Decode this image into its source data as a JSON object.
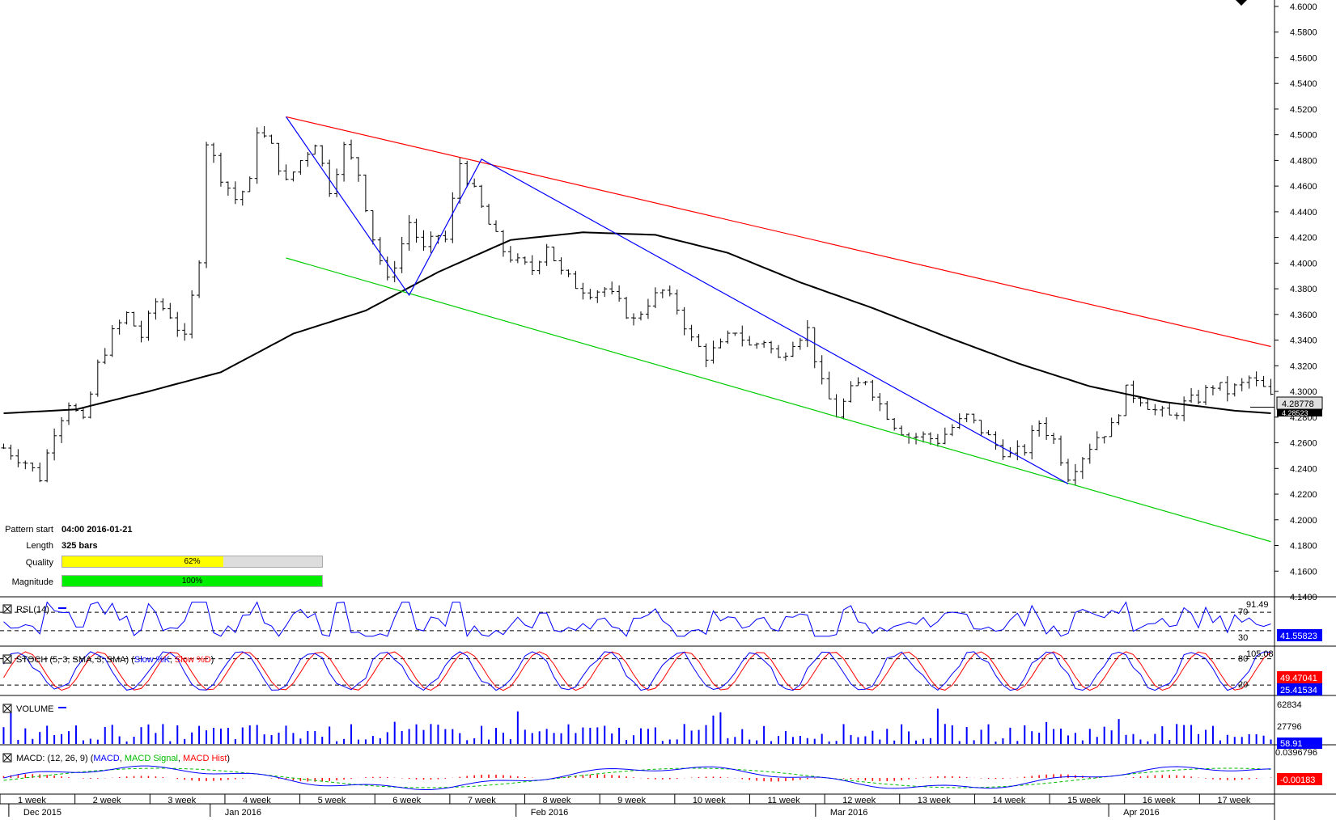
{
  "chart_data": {
    "type": "candlestick",
    "price_axis": {
      "ticks": [
        "4.6000",
        "4.5800",
        "4.5600",
        "4.5400",
        "4.5200",
        "4.5000",
        "4.4800",
        "4.4600",
        "4.4400",
        "4.4200",
        "4.4000",
        "4.3800",
        "4.3600",
        "4.3400",
        "4.3200",
        "4.3000",
        "4.2800",
        "4.2600",
        "4.2400",
        "4.2200",
        "4.2000",
        "4.1800",
        "4.1600",
        "4.1400"
      ],
      "ylim": [
        4.14,
        4.605
      ],
      "current_price": "4.28778",
      "overlapped_price_label": "4.28523"
    },
    "price_path": [
      [
        0,
        4.256
      ],
      [
        3,
        4.245
      ],
      [
        5,
        4.233
      ],
      [
        7,
        4.27
      ],
      [
        9,
        4.292
      ],
      [
        11,
        4.275
      ],
      [
        13,
        4.32
      ],
      [
        15,
        4.345
      ],
      [
        17,
        4.36
      ],
      [
        19,
        4.343
      ],
      [
        21,
        4.37
      ],
      [
        23,
        4.36
      ],
      [
        25,
        4.34
      ],
      [
        27,
        4.405
      ],
      [
        28,
        4.495
      ],
      [
        30,
        4.468
      ],
      [
        32,
        4.45
      ],
      [
        34,
        4.462
      ],
      [
        35,
        4.505
      ],
      [
        37,
        4.49
      ],
      [
        39,
        4.462
      ],
      [
        41,
        4.48
      ],
      [
        43,
        4.495
      ],
      [
        45,
        4.458
      ],
      [
        47,
        4.49
      ],
      [
        49,
        4.47
      ],
      [
        51,
        4.42
      ],
      [
        53,
        4.385
      ],
      [
        55,
        4.415
      ],
      [
        56,
        4.432
      ],
      [
        58,
        4.41
      ],
      [
        60,
        4.422
      ],
      [
        61,
        4.418
      ],
      [
        63,
        4.478
      ],
      [
        65,
        4.455
      ],
      [
        67,
        4.43
      ],
      [
        69,
        4.41
      ],
      [
        71,
        4.4
      ],
      [
        73,
        4.395
      ],
      [
        75,
        4.415
      ],
      [
        77,
        4.392
      ],
      [
        79,
        4.383
      ],
      [
        81,
        4.378
      ],
      [
        83,
        4.38
      ],
      [
        85,
        4.368
      ],
      [
        87,
        4.355
      ],
      [
        89,
        4.37
      ],
      [
        91,
        4.378
      ],
      [
        93,
        4.365
      ],
      [
        95,
        4.34
      ],
      [
        97,
        4.328
      ],
      [
        99,
        4.335
      ],
      [
        101,
        4.348
      ],
      [
        103,
        4.335
      ],
      [
        105,
        4.34
      ],
      [
        107,
        4.325
      ],
      [
        109,
        4.34
      ],
      [
        111,
        4.348
      ],
      [
        113,
        4.305
      ],
      [
        115,
        4.282
      ],
      [
        117,
        4.3
      ],
      [
        119,
        4.31
      ],
      [
        121,
        4.29
      ],
      [
        123,
        4.275
      ],
      [
        125,
        4.265
      ],
      [
        127,
        4.265
      ],
      [
        129,
        4.262
      ],
      [
        131,
        4.272
      ],
      [
        133,
        4.28
      ],
      [
        135,
        4.27
      ],
      [
        137,
        4.258
      ],
      [
        139,
        4.25
      ],
      [
        141,
        4.255
      ],
      [
        143,
        4.276
      ],
      [
        145,
        4.262
      ],
      [
        147,
        4.235
      ],
      [
        149,
        4.25
      ],
      [
        151,
        4.265
      ],
      [
        153,
        4.272
      ],
      [
        155,
        4.3
      ],
      [
        157,
        4.295
      ],
      [
        159,
        4.285
      ],
      [
        161,
        4.28
      ],
      [
        163,
        4.29
      ],
      [
        165,
        4.295
      ],
      [
        167,
        4.305
      ],
      [
        169,
        4.3
      ],
      [
        171,
        4.305
      ],
      [
        172,
        4.31
      ],
      [
        174,
        4.302
      ],
      [
        175,
        4.295
      ]
    ],
    "moving_average": [
      [
        0,
        4.283
      ],
      [
        10,
        4.286
      ],
      [
        20,
        4.3
      ],
      [
        30,
        4.315
      ],
      [
        40,
        4.345
      ],
      [
        50,
        4.363
      ],
      [
        60,
        4.393
      ],
      [
        70,
        4.418
      ],
      [
        80,
        4.424
      ],
      [
        90,
        4.422
      ],
      [
        100,
        4.408
      ],
      [
        110,
        4.385
      ],
      [
        120,
        4.365
      ],
      [
        130,
        4.343
      ],
      [
        140,
        4.322
      ],
      [
        150,
        4.304
      ],
      [
        160,
        4.292
      ],
      [
        170,
        4.285
      ],
      [
        175,
        4.283
      ]
    ],
    "patterns": {
      "upper_trendline": {
        "color": "#ff0000",
        "from": [
          39,
          4.514
        ],
        "to": [
          175,
          4.335
        ]
      },
      "lower_trendline": {
        "color": "#00cc00",
        "from": [
          39,
          4.404
        ],
        "to": [
          175,
          4.183
        ]
      },
      "zigzag": {
        "color": "#0000ff",
        "points": [
          [
            39,
            4.514
          ],
          [
            56,
            4.375
          ],
          [
            66,
            4.481
          ],
          [
            147,
            4.228
          ]
        ]
      }
    },
    "x_axis": {
      "week_labels": [
        "1 week",
        "2 week",
        "3 week",
        "4 week",
        "5 week",
        "6 week",
        "7 week",
        "8 week",
        "9 week",
        "10 week",
        "11 week",
        "12 week",
        "13 week",
        "14 week",
        "15 week",
        "16 week",
        "17 week"
      ],
      "month_labels": [
        "Dec 2015",
        "Jan 2016",
        "Feb 2016",
        "Mar 2016",
        "Apr 2016"
      ]
    },
    "indicators": {
      "rsi": {
        "label": "RSI (14)",
        "levels": [
          "70",
          "30"
        ],
        "max_label": "91.49",
        "value": "41.55823",
        "line_color": "#0000ff"
      },
      "stoch": {
        "label_prefix": "STOCH (5, 3, SMA, 3, SMA) (",
        "label_k": "Slow %K",
        "label_sep": ", ",
        "label_d": "Slow %D",
        "label_suffix": ")",
        "levels": [
          "80",
          "20"
        ],
        "max_label": "105.08",
        "value_d": "49.47041",
        "value_k": "25.41534"
      },
      "volume": {
        "label": "VOLUME",
        "ticks": [
          "62834",
          "27796"
        ],
        "value": "58.91"
      },
      "macd": {
        "label_prefix": "MACD: (12, 26, 9) (",
        "label_macd": "MACD",
        "label_sep1": ", ",
        "label_signal": "MACD Signal",
        "label_sep2": ", ",
        "label_hist": "MACD Hist",
        "label_suffix": ")",
        "max_label": "0.0396796",
        "value": "-0.00183"
      }
    }
  },
  "pattern_info": {
    "start_label": "Pattern start",
    "start_value": "04:00 2016-01-21",
    "length_label": "Length",
    "length_value": "325 bars",
    "quality_label": "Quality",
    "quality_value": "62%",
    "quality_fraction": 0.62,
    "magnitude_label": "Magnitude",
    "magnitude_value": "100%",
    "magnitude_fraction": 1.0
  },
  "colors": {
    "red": "#ff0000",
    "green": "#00cc00",
    "blue": "#0000ff",
    "quality": "#ffff00",
    "magnitude": "#00ee00"
  }
}
